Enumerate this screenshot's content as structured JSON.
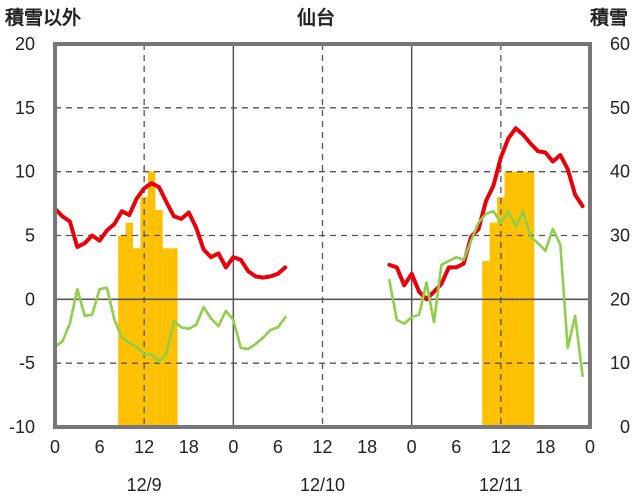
{
  "chart_data": {
    "type": "line",
    "title": "仙台",
    "ylabel_left": "積雪以外",
    "ylabel_right": "積雪",
    "ylim_left": [
      -10,
      20
    ],
    "ylim_right": [
      0,
      60
    ],
    "yticks_left": [
      "20",
      "15",
      "10",
      "5",
      "0",
      "-5",
      "-10"
    ],
    "yticks_right": [
      "60",
      "50",
      "40",
      "30",
      "20",
      "10",
      "0"
    ],
    "xlim_hours": [
      0,
      72
    ],
    "xticks": [
      "0",
      "6",
      "12",
      "18",
      "0",
      "6",
      "12",
      "18",
      "0",
      "6",
      "12",
      "18",
      "0"
    ],
    "date_labels": [
      {
        "label": "12/9",
        "hour": 12
      },
      {
        "label": "12/10",
        "hour": 36
      },
      {
        "label": "12/11",
        "hour": 60
      }
    ],
    "series": [
      {
        "color": "#e8000b",
        "axis": "left",
        "segments": [
          [
            [
              0,
              7.1
            ],
            [
              1,
              6.5
            ],
            [
              2,
              6.1
            ],
            [
              3,
              4.1
            ],
            [
              4,
              4.4
            ],
            [
              5,
              5.0
            ],
            [
              6,
              4.6
            ],
            [
              7,
              5.4
            ],
            [
              8,
              5.9
            ],
            [
              9,
              6.9
            ],
            [
              10,
              6.6
            ],
            [
              11,
              7.9
            ],
            [
              12,
              8.7
            ],
            [
              13,
              9.1
            ],
            [
              14,
              8.8
            ],
            [
              15,
              7.6
            ],
            [
              16,
              6.5
            ],
            [
              17,
              6.3
            ],
            [
              18,
              6.8
            ],
            [
              19,
              5.6
            ],
            [
              20,
              3.9
            ],
            [
              21,
              3.3
            ],
            [
              22,
              3.6
            ],
            [
              23,
              2.5
            ],
            [
              24,
              3.3
            ],
            [
              25,
              3.1
            ],
            [
              26,
              2.2
            ],
            [
              27,
              1.8
            ],
            [
              28,
              1.7
            ],
            [
              29,
              1.8
            ],
            [
              30,
              2.0
            ],
            [
              31,
              2.5
            ]
          ],
          [
            [
              45,
              2.7
            ],
            [
              46,
              2.5
            ],
            [
              47,
              1.1
            ],
            [
              48,
              2.0
            ],
            [
              49,
              0.6
            ],
            [
              50,
              0.0
            ],
            [
              51,
              0.6
            ],
            [
              52,
              1.2
            ],
            [
              53,
              2.5
            ],
            [
              54,
              2.5
            ],
            [
              55,
              2.8
            ],
            [
              56,
              4.9
            ],
            [
              57,
              5.5
            ],
            [
              58,
              7.7
            ],
            [
              59,
              8.9
            ],
            [
              60,
              11.1
            ],
            [
              61,
              12.6
            ],
            [
              62,
              13.4
            ],
            [
              63,
              12.9
            ],
            [
              64,
              12.2
            ],
            [
              65,
              11.6
            ],
            [
              66,
              11.5
            ],
            [
              67,
              10.8
            ],
            [
              68,
              11.3
            ],
            [
              69,
              10.2
            ],
            [
              70,
              8.2
            ],
            [
              71,
              7.3
            ]
          ]
        ]
      },
      {
        "color": "#8ecf4a",
        "axis": "left",
        "segments": [
          [
            [
              0,
              -3.7
            ],
            [
              1,
              -3.3
            ],
            [
              2,
              -1.9
            ],
            [
              3,
              0.8
            ],
            [
              4,
              -1.3
            ],
            [
              5,
              -1.2
            ],
            [
              6,
              0.8
            ],
            [
              7,
              0.9
            ],
            [
              8,
              -1.6
            ],
            [
              9,
              -3.0
            ],
            [
              10,
              -3.4
            ],
            [
              11,
              -3.7
            ],
            [
              12,
              -4.3
            ],
            [
              13,
              -4.3
            ],
            [
              14,
              -4.9
            ],
            [
              15,
              -4.2
            ],
            [
              16,
              -1.7
            ],
            [
              17,
              -2.2
            ],
            [
              18,
              -2.3
            ],
            [
              19,
              -2.0
            ],
            [
              20,
              -0.6
            ],
            [
              21,
              -1.5
            ],
            [
              22,
              -2.1
            ],
            [
              23,
              -0.9
            ],
            [
              24,
              -1.6
            ],
            [
              25,
              -3.8
            ],
            [
              26,
              -3.9
            ],
            [
              27,
              -3.5
            ],
            [
              28,
              -3.0
            ],
            [
              29,
              -2.4
            ],
            [
              30,
              -2.2
            ],
            [
              31,
              -1.4
            ]
          ],
          [
            [
              45,
              1.5
            ],
            [
              46,
              -1.6
            ],
            [
              47,
              -1.9
            ],
            [
              48,
              -1.4
            ],
            [
              49,
              -1.2
            ],
            [
              50,
              1.3
            ],
            [
              51,
              -1.8
            ],
            [
              52,
              2.7
            ],
            [
              53,
              3.0
            ],
            [
              54,
              3.3
            ],
            [
              55,
              3.1
            ],
            [
              56,
              4.6
            ],
            [
              57,
              6.0
            ],
            [
              58,
              6.7
            ],
            [
              59,
              6.9
            ],
            [
              60,
              6.0
            ],
            [
              61,
              6.9
            ],
            [
              62,
              5.7
            ],
            [
              63,
              6.9
            ],
            [
              64,
              4.9
            ],
            [
              65,
              4.4
            ],
            [
              66,
              3.8
            ],
            [
              67,
              5.5
            ],
            [
              68,
              4.3
            ],
            [
              69,
              -3.8
            ],
            [
              70,
              -1.3
            ],
            [
              71,
              -6.0
            ]
          ]
        ]
      },
      {
        "color": "#7030a0",
        "axis": "left",
        "segments": [
          [
            [
              0,
              -10
            ],
            [
              31,
              -10
            ]
          ],
          [
            [
              45,
              -10
            ],
            [
              72,
              -10
            ]
          ]
        ]
      }
    ],
    "snow_bars": {
      "color": "#ffc000",
      "axis": "right",
      "points": [
        [
          9,
          30
        ],
        [
          10,
          32
        ],
        [
          11,
          28
        ],
        [
          12,
          36
        ],
        [
          13,
          40
        ],
        [
          14,
          34
        ],
        [
          15,
          28
        ],
        [
          16,
          28
        ],
        [
          58,
          26
        ],
        [
          59,
          32
        ],
        [
          60,
          36
        ],
        [
          61,
          40
        ],
        [
          62,
          40
        ],
        [
          63,
          40
        ],
        [
          64,
          40
        ]
      ]
    }
  }
}
